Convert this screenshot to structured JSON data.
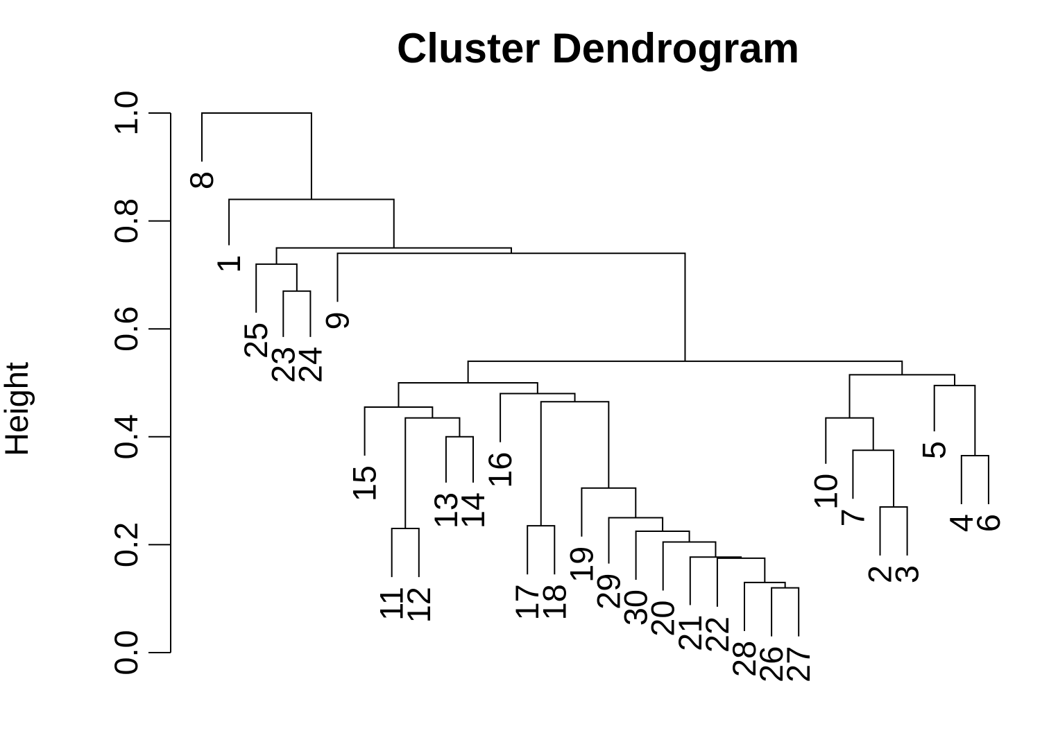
{
  "chart_data": {
    "type": "dendrogram",
    "title": "Cluster Dendrogram",
    "ylabel": "Height",
    "ylim": [
      0,
      1
    ],
    "yticks": [
      "0.0",
      "0.2",
      "0.4",
      "0.6",
      "0.8",
      "1.0"
    ],
    "leaf_order": [
      "8",
      "1",
      "25",
      "23",
      "24",
      "9",
      "15",
      "11",
      "12",
      "13",
      "14",
      "16",
      "17",
      "18",
      "19",
      "29",
      "30",
      "20",
      "21",
      "22",
      "28",
      "26",
      "27",
      "10",
      "7",
      "2",
      "3",
      "5",
      "4",
      "6"
    ],
    "merges": [
      {
        "id": "c2",
        "left": "2",
        "right": "3",
        "height": 0.27
      },
      {
        "id": "c7",
        "left": "7",
        "right": "c2",
        "height": 0.375
      },
      {
        "id": "c10",
        "left": "10",
        "right": "c7",
        "height": 0.435
      },
      {
        "id": "c46",
        "left": "4",
        "right": "6",
        "height": 0.365
      },
      {
        "id": "c5",
        "left": "5",
        "right": "c46",
        "height": 0.495
      },
      {
        "id": "cR",
        "left": "c10",
        "right": "c5",
        "height": 0.515
      },
      {
        "id": "c1112",
        "left": "11",
        "right": "12",
        "height": 0.23
      },
      {
        "id": "c1314",
        "left": "13",
        "right": "14",
        "height": 0.4
      },
      {
        "id": "c11to14",
        "left": "c1112",
        "right": "c1314",
        "height": 0.435
      },
      {
        "id": "c15",
        "left": "15",
        "right": "c11to14",
        "height": 0.455
      },
      {
        "id": "c1718",
        "left": "17",
        "right": "18",
        "height": 0.235
      },
      {
        "id": "c2627",
        "left": "26",
        "right": "27",
        "height": 0.12
      },
      {
        "id": "c28",
        "left": "28",
        "right": "c2627",
        "height": 0.13
      },
      {
        "id": "c22",
        "left": "22",
        "right": "c28",
        "height": 0.175
      },
      {
        "id": "c21",
        "left": "21",
        "right": "c22",
        "height": 0.177
      },
      {
        "id": "c20",
        "left": "20",
        "right": "c21",
        "height": 0.205
      },
      {
        "id": "c30",
        "left": "30",
        "right": "c20",
        "height": 0.225
      },
      {
        "id": "c29",
        "left": "29",
        "right": "c30",
        "height": 0.25
      },
      {
        "id": "c19",
        "left": "19",
        "right": "c29",
        "height": 0.305
      },
      {
        "id": "c17to19",
        "left": "c1718",
        "right": "c19",
        "height": 0.465
      },
      {
        "id": "c16",
        "left": "16",
        "right": "c17to19",
        "height": 0.48
      },
      {
        "id": "cMid",
        "left": "c15",
        "right": "c16",
        "height": 0.5
      },
      {
        "id": "cMR",
        "left": "cMid",
        "right": "cR",
        "height": 0.54
      },
      {
        "id": "c9",
        "left": "9",
        "right": "cMR",
        "height": 0.74
      },
      {
        "id": "c2324",
        "left": "23",
        "right": "24",
        "height": 0.67
      },
      {
        "id": "c25",
        "left": "25",
        "right": "c2324",
        "height": 0.72
      },
      {
        "id": "c25to9",
        "left": "c25",
        "right": "c9",
        "height": 0.75
      },
      {
        "id": "c1",
        "left": "1",
        "right": "c25to9",
        "height": 0.84
      },
      {
        "id": "root",
        "left": "8",
        "right": "c1",
        "height": 1.0
      }
    ],
    "leaf_tips": {
      "8": 0.91,
      "1": 0.755,
      "25": 0.63,
      "23": 0.585,
      "24": 0.585,
      "9": 0.65,
      "15": 0.365,
      "11": 0.14,
      "12": 0.14,
      "13": 0.315,
      "14": 0.315,
      "16": 0.39,
      "17": 0.145,
      "18": 0.145,
      "19": 0.215,
      "29": 0.165,
      "30": 0.135,
      "20": 0.115,
      "21": 0.088,
      "22": 0.085,
      "28": 0.04,
      "26": 0.03,
      "27": 0.03,
      "10": 0.35,
      "7": 0.285,
      "2": 0.18,
      "3": 0.18,
      "5": 0.41,
      "4": 0.275,
      "6": 0.275
    }
  }
}
